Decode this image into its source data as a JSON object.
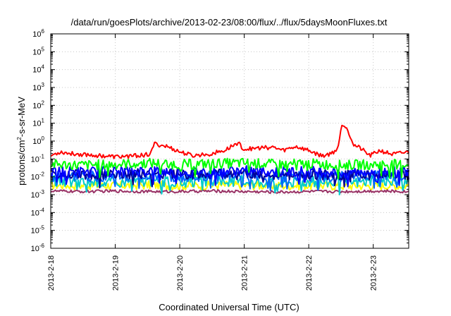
{
  "chart_data": {
    "type": "line",
    "title": "/data/run/goesPlots/archive/2013-02-23/08:00/flux/../flux/5daysMoonFluxes.txt",
    "xlabel": "Coordinated Universal Time (UTC)",
    "ylabel": {
      "base": "protons/cm",
      "sup": "2",
      "rest": "-s-sr-MeV"
    },
    "yscale": "log",
    "ylim": [
      1e-06,
      1000000
    ],
    "xlim": [
      0,
      5.55
    ],
    "x_unit": "days since 2013-2-18 00:00 UTC",
    "grid": true,
    "x_ticks": [
      {
        "x": 0,
        "label": "2013-2-18"
      },
      {
        "x": 1,
        "label": "2013-2-19"
      },
      {
        "x": 2,
        "label": "2013-2-20"
      },
      {
        "x": 3,
        "label": "2013-2-21"
      },
      {
        "x": 4,
        "label": "2013-2-22"
      },
      {
        "x": 5,
        "label": "2013-2-23"
      }
    ],
    "y_ticks": [
      {
        "value": 1e-06,
        "base": "10",
        "exp": "-6"
      },
      {
        "value": 1e-05,
        "base": "10",
        "exp": "-5"
      },
      {
        "value": 0.0001,
        "base": "10",
        "exp": "-4"
      },
      {
        "value": 0.001,
        "base": "10",
        "exp": "-3"
      },
      {
        "value": 0.01,
        "base": "10",
        "exp": "-2"
      },
      {
        "value": 0.1,
        "base": "10",
        "exp": "-1"
      },
      {
        "value": 1,
        "base": "10",
        "exp": "0"
      },
      {
        "value": 10,
        "base": "10",
        "exp": "1"
      },
      {
        "value": 100,
        "base": "10",
        "exp": "2"
      },
      {
        "value": 1000,
        "base": "10",
        "exp": "3"
      },
      {
        "value": 10000,
        "base": "10",
        "exp": "4"
      },
      {
        "value": 100000,
        "base": "10",
        "exp": "5"
      },
      {
        "value": 1000000,
        "base": "10",
        "exp": "6"
      }
    ],
    "series": [
      {
        "color": "#ffff00",
        "x": [
          0,
          0.5,
          1,
          1.5,
          2,
          2.5,
          3,
          3.5,
          4,
          4.5,
          5,
          5.55
        ],
        "values": [
          0.0035,
          0.0032,
          0.0033,
          0.0034,
          0.0032,
          0.0033,
          0.0034,
          0.0032,
          0.0033,
          0.0031,
          0.0032,
          0.0033
        ]
      },
      {
        "color": "#993366",
        "x": [
          0,
          0.5,
          1,
          1.5,
          2,
          2.5,
          3,
          3.5,
          4,
          4.5,
          5,
          5.55
        ],
        "values": [
          0.0016,
          0.0015,
          0.0016,
          0.0015,
          0.0015,
          0.0016,
          0.0015,
          0.0014,
          0.0015,
          0.0015,
          0.0016,
          0.0015
        ]
      },
      {
        "color": "#00cccc",
        "x": [
          0,
          0.5,
          1,
          1.5,
          2,
          2.5,
          3,
          3.5,
          4,
          4.5,
          5,
          5.55
        ],
        "values": [
          0.006,
          0.005,
          0.0055,
          0.006,
          0.005,
          0.0055,
          0.006,
          0.005,
          0.0055,
          0.005,
          0.006,
          0.0055
        ]
      },
      {
        "color": "#0066ff",
        "x": [
          0,
          0.5,
          1,
          1.5,
          2,
          2.5,
          3,
          3.5,
          4,
          4.5,
          5,
          5.55
        ],
        "values": [
          0.012,
          0.01,
          0.011,
          0.012,
          0.01,
          0.011,
          0.013,
          0.01,
          0.011,
          0.01,
          0.012,
          0.011
        ]
      },
      {
        "color": "#000099",
        "x": [
          0,
          0.5,
          1,
          1.5,
          2,
          2.5,
          3,
          3.5,
          4,
          4.5,
          5,
          5.55
        ],
        "values": [
          0.015,
          0.013,
          0.014,
          0.016,
          0.013,
          0.014,
          0.016,
          0.013,
          0.014,
          0.012,
          0.015,
          0.014
        ]
      },
      {
        "color": "#0000ff",
        "x": [
          0,
          0.5,
          1,
          1.5,
          2,
          2.5,
          3,
          3.5,
          4,
          4.5,
          5,
          5.55
        ],
        "values": [
          0.02,
          0.018,
          0.019,
          0.021,
          0.018,
          0.02,
          0.022,
          0.018,
          0.02,
          0.017,
          0.02,
          0.019
        ]
      },
      {
        "color": "#00ff00",
        "x": [
          0,
          0.5,
          1,
          1.5,
          2,
          2.5,
          3,
          3.5,
          4,
          4.5,
          5,
          5.55
        ],
        "values": [
          0.05,
          0.045,
          0.05,
          0.06,
          0.05,
          0.055,
          0.06,
          0.05,
          0.055,
          0.045,
          0.05,
          0.05
        ]
      },
      {
        "color": "#ff0000",
        "x": [
          0,
          0.15,
          0.3,
          0.5,
          0.8,
          1,
          1.3,
          1.55,
          1.6,
          1.8,
          2,
          2.2,
          2.5,
          2.7,
          2.9,
          3,
          3.2,
          3.45,
          3.6,
          3.8,
          4,
          4.2,
          4.35,
          4.45,
          4.52,
          4.6,
          4.7,
          4.8,
          4.95,
          5.1,
          5.3,
          5.55
        ],
        "values": [
          0.15,
          0.25,
          0.2,
          0.18,
          0.15,
          0.13,
          0.15,
          0.18,
          0.7,
          0.5,
          0.25,
          0.15,
          0.2,
          0.3,
          0.8,
          0.35,
          0.4,
          0.45,
          0.3,
          0.5,
          0.3,
          0.15,
          0.2,
          0.4,
          10,
          5,
          0.6,
          0.4,
          0.15,
          0.3,
          0.18,
          0.25
        ]
      }
    ]
  }
}
